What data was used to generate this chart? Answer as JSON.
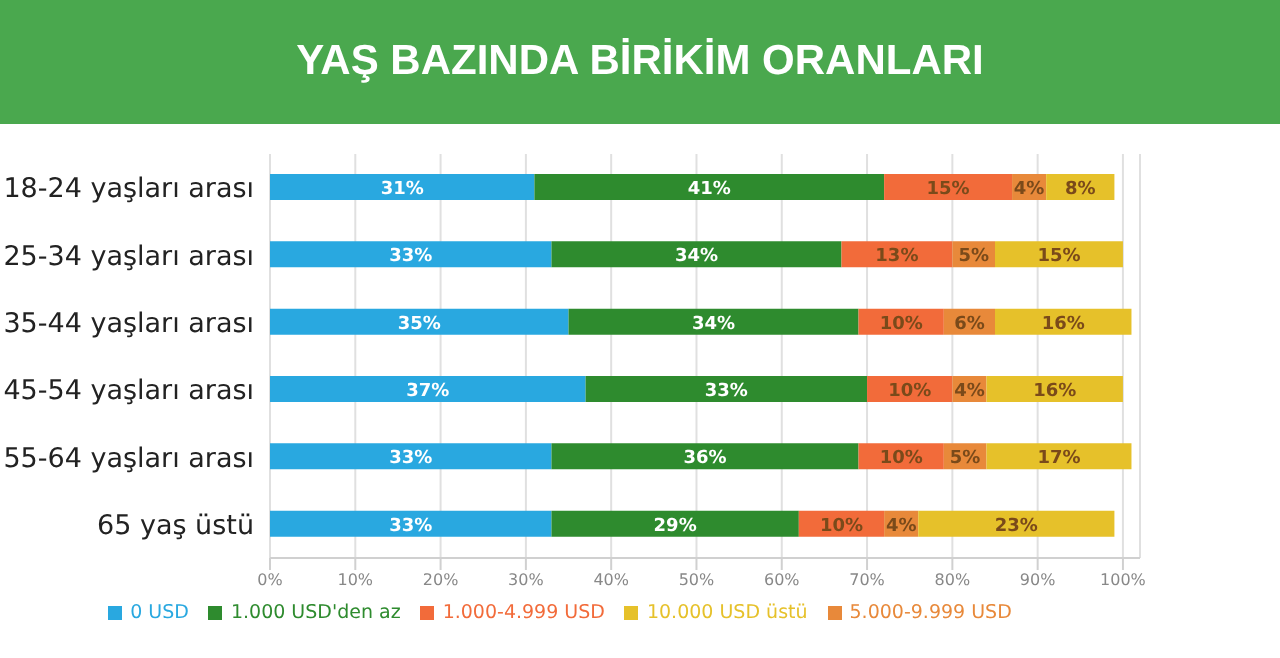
{
  "chart_data": {
    "type": "bar",
    "orientation": "horizontal",
    "stacked": true,
    "title": "YAŞ BAZINDA BİRİKİM ORANLARI",
    "categories": [
      "18-24 yaşları arası",
      "25-34 yaşları arası",
      "35-44 yaşları arası",
      "45-54 yaşları arası",
      "55-64 yaşları arası",
      "65 yaş üstü"
    ],
    "series": [
      {
        "name": "0 USD",
        "color": "#29a8e0",
        "values": [
          31,
          33,
          35,
          37,
          33,
          33
        ],
        "value_labels": [
          "31%",
          "33%",
          "35%",
          "37%",
          "33%",
          "33%"
        ]
      },
      {
        "name": "1.000 USD'den az",
        "color": "#2e8b2e",
        "values": [
          41,
          34,
          34,
          33,
          36,
          29
        ],
        "value_labels": [
          "41%",
          "34%",
          "34%",
          "33%",
          "36%",
          "29%"
        ]
      },
      {
        "name": "1.000-4.999 USD",
        "color": "#f26b3a",
        "values": [
          15,
          13,
          10,
          10,
          10,
          10
        ],
        "value_labels": [
          "15%",
          "13%",
          "10%",
          "10%",
          "10%",
          "10%"
        ]
      },
      {
        "name": "5.000-9.999 USD",
        "color": "#e8893a",
        "values": [
          4,
          5,
          6,
          4,
          5,
          4
        ],
        "value_labels": [
          "4%",
          "5%",
          "6%",
          "4%",
          "5%",
          "4%"
        ]
      },
      {
        "name": "10.000 USD üstü",
        "color": "#e6c12a",
        "values": [
          8,
          15,
          16,
          16,
          17,
          23
        ],
        "value_labels": [
          "8%",
          "15%",
          "16%",
          "16%",
          "17%",
          "23%"
        ]
      }
    ],
    "xlim": [
      0,
      102
    ],
    "xticks": [
      {
        "value": 0,
        "label": "0%"
      },
      {
        "value": 10,
        "label": "10%"
      },
      {
        "value": 20,
        "label": "20%"
      },
      {
        "value": 30,
        "label": "30%"
      },
      {
        "value": 40,
        "label": "40%"
      },
      {
        "value": 50,
        "label": "50%"
      },
      {
        "value": 60,
        "label": "60%"
      },
      {
        "value": 70,
        "label": "70%"
      },
      {
        "value": 80,
        "label": "80%"
      },
      {
        "value": 90,
        "label": "90%"
      },
      {
        "value": 100,
        "label": "100%"
      }
    ],
    "grid": "x",
    "legend": "bottom"
  }
}
